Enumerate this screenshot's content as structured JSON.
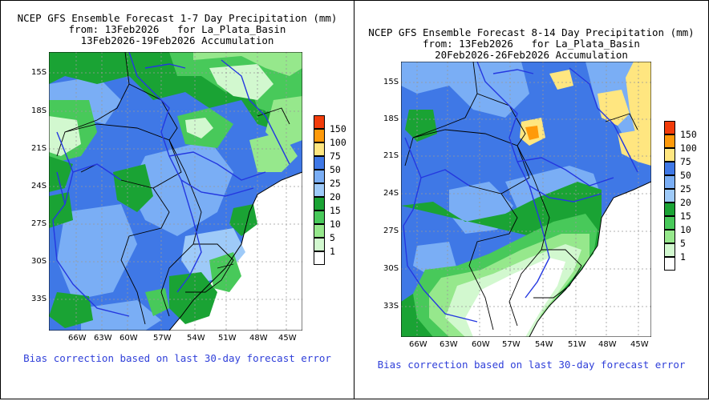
{
  "left": {
    "title_line1": "NCEP GFS Ensemble Forecast 1-7 Day Precipitation (mm)",
    "title_line2": "from: 13Feb2026   for La_Plata_Basin",
    "title_line3": "13Feb2026-19Feb2026 Accumulation",
    "footer": "Bias correction based on last 30-day forecast error"
  },
  "right": {
    "title_line1": "NCEP GFS Ensemble Forecast 8-14 Day Precipitation (mm)",
    "title_line2": "from: 13Feb2026   for La_Plata_Basin",
    "title_line3": "20Feb2026-26Feb2026 Accumulation",
    "footer": "Bias correction based on last 30-day forecast error"
  },
  "lat_labels": [
    "15S",
    "18S",
    "21S",
    "24S",
    "27S",
    "30S",
    "33S"
  ],
  "lon_labels": [
    "66W",
    "63W",
    "60W",
    "57W",
    "54W",
    "51W",
    "48W",
    "45W"
  ],
  "legend": {
    "labels": [
      "150",
      "100",
      "75",
      "50",
      "25",
      "20",
      "15",
      "10",
      "5",
      "1"
    ],
    "colors": [
      "#f23c0a",
      "#ff9a0a",
      "#ffe680",
      "#3f78e6",
      "#7aaef5",
      "#9ecaf8",
      "#1aa334",
      "#48c95a",
      "#96e88c",
      "#d2f8cf",
      "#ffffff"
    ]
  },
  "colors": {
    "ocean": "#ffffff",
    "border": "#000000",
    "river": "#2438e0",
    "grid": "#999999"
  }
}
